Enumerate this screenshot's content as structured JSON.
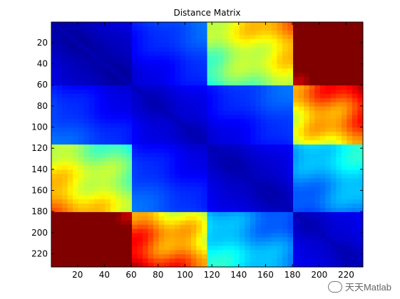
{
  "chart_data": {
    "type": "heatmap",
    "title": "Distance Matrix",
    "xlabel": "",
    "ylabel": "",
    "n": 232,
    "xlim": [
      0.5,
      232.5
    ],
    "ylim": [
      0.5,
      232.5
    ],
    "y_reversed": true,
    "colormap": "jet",
    "xticks": [
      20,
      40,
      60,
      80,
      100,
      120,
      140,
      160,
      180,
      200,
      220
    ],
    "yticks": [
      20,
      40,
      60,
      80,
      100,
      120,
      140,
      160,
      180,
      200,
      220
    ],
    "blocks": [
      {
        "rows": [
          1,
          60
        ],
        "cols": [
          1,
          60
        ],
        "level": 0.05
      },
      {
        "rows": [
          60,
          118
        ],
        "cols": [
          60,
          118
        ],
        "level": 0.1
      },
      {
        "rows": [
          118,
          180
        ],
        "cols": [
          118,
          180
        ],
        "level": 0.08
      },
      {
        "rows": [
          180,
          232
        ],
        "cols": [
          180,
          232
        ],
        "level": 0.1
      },
      {
        "rows": [
          1,
          60
        ],
        "cols": [
          180,
          232
        ],
        "level": 0.85
      },
      {
        "rows": [
          180,
          232
        ],
        "cols": [
          1,
          60
        ],
        "level": 0.85
      },
      {
        "rows": [
          60,
          118
        ],
        "cols": [
          180,
          232
        ],
        "level": 0.6
      },
      {
        "rows": [
          180,
          232
        ],
        "cols": [
          60,
          118
        ],
        "level": 0.6
      },
      {
        "rows": [
          1,
          60
        ],
        "cols": [
          118,
          180
        ],
        "level": 0.45
      },
      {
        "rows": [
          118,
          180
        ],
        "cols": [
          1,
          60
        ],
        "level": 0.45
      },
      {
        "rows": [
          118,
          180
        ],
        "cols": [
          180,
          232
        ],
        "level": 0.3
      },
      {
        "rows": [
          180,
          232
        ],
        "cols": [
          118,
          180
        ],
        "level": 0.3
      }
    ]
  },
  "watermark": {
    "text": "天天Matlab"
  }
}
